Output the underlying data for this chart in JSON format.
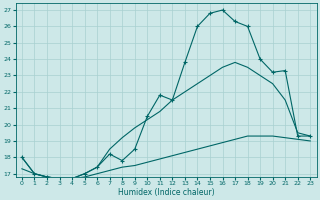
{
  "bg_color": "#cde8e8",
  "grid_color": "#a8d0d0",
  "line_color": "#006666",
  "xlabel": "Humidex (Indice chaleur)",
  "xlim": [
    -0.5,
    23.5
  ],
  "ylim": [
    16.8,
    27.4
  ],
  "xticks": [
    0,
    1,
    2,
    3,
    4,
    5,
    6,
    7,
    8,
    9,
    10,
    11,
    12,
    13,
    14,
    15,
    16,
    17,
    18,
    19,
    20,
    21,
    22,
    23
  ],
  "yticks": [
    17,
    18,
    19,
    20,
    21,
    22,
    23,
    24,
    25,
    26,
    27
  ],
  "curve1_x": [
    0,
    1,
    2,
    3,
    4,
    5,
    6,
    7,
    8,
    9,
    10,
    11,
    12,
    13,
    14,
    15,
    16,
    17,
    18,
    19,
    20,
    21,
    22,
    23
  ],
  "curve1_y": [
    18.0,
    17.0,
    16.8,
    16.7,
    16.7,
    17.0,
    17.4,
    18.2,
    17.8,
    18.5,
    20.5,
    21.8,
    21.5,
    23.8,
    26.0,
    26.8,
    27.0,
    26.3,
    26.0,
    24.0,
    23.2,
    23.3,
    19.3,
    19.3
  ],
  "curve2_x": [
    0,
    1,
    2,
    3,
    4,
    5,
    6,
    7,
    8,
    9,
    10,
    11,
    12,
    13,
    14,
    15,
    16,
    17,
    18,
    19,
    20,
    21,
    22,
    23
  ],
  "curve2_y": [
    18.0,
    17.0,
    16.8,
    16.7,
    16.7,
    17.0,
    17.4,
    18.5,
    19.2,
    19.8,
    20.3,
    20.8,
    21.5,
    22.0,
    22.5,
    23.0,
    23.5,
    23.8,
    23.5,
    23.0,
    22.5,
    21.5,
    19.5,
    19.3
  ],
  "curve3_x": [
    0,
    1,
    2,
    3,
    4,
    5,
    6,
    7,
    8,
    9,
    10,
    11,
    12,
    13,
    14,
    15,
    16,
    17,
    18,
    19,
    20,
    21,
    22,
    23
  ],
  "curve3_y": [
    17.3,
    17.0,
    16.8,
    16.7,
    16.7,
    16.8,
    17.0,
    17.2,
    17.4,
    17.5,
    17.7,
    17.9,
    18.1,
    18.3,
    18.5,
    18.7,
    18.9,
    19.1,
    19.3,
    19.3,
    19.3,
    19.2,
    19.1,
    19.0
  ]
}
